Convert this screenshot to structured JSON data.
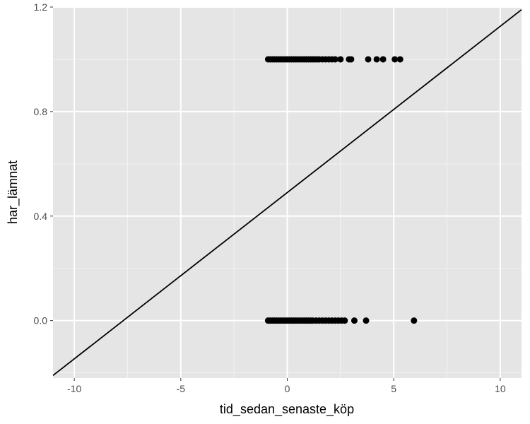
{
  "chart_data": {
    "type": "scatter",
    "xlabel": "tid_sedan_senaste_köp",
    "ylabel": "har_lämnat",
    "xlim": [
      -11,
      11
    ],
    "ylim": [
      -0.22,
      1.2
    ],
    "x_ticks": [
      -10,
      -5,
      0,
      5,
      10
    ],
    "x_tick_labels": [
      "-10",
      "-5",
      "0",
      "5",
      "10"
    ],
    "y_ticks": [
      0.0,
      0.4,
      0.8,
      1.2
    ],
    "y_tick_labels": [
      "0.0",
      "0.4",
      "0.8",
      "1.2"
    ],
    "grid": true,
    "background": "#e5e5e5",
    "grid_color": "#ffffff",
    "point_color": "#000000",
    "line_color": "#000000",
    "points": [
      {
        "x": -0.9,
        "y": 1
      },
      {
        "x": -0.8,
        "y": 1
      },
      {
        "x": -0.7,
        "y": 1
      },
      {
        "x": -0.6,
        "y": 1
      },
      {
        "x": -0.5,
        "y": 1
      },
      {
        "x": -0.4,
        "y": 1
      },
      {
        "x": -0.3,
        "y": 1
      },
      {
        "x": -0.2,
        "y": 1
      },
      {
        "x": -0.1,
        "y": 1
      },
      {
        "x": 0.0,
        "y": 1
      },
      {
        "x": 0.1,
        "y": 1
      },
      {
        "x": 0.2,
        "y": 1
      },
      {
        "x": 0.3,
        "y": 1
      },
      {
        "x": 0.4,
        "y": 1
      },
      {
        "x": 0.5,
        "y": 1
      },
      {
        "x": 0.6,
        "y": 1
      },
      {
        "x": 0.7,
        "y": 1
      },
      {
        "x": 0.8,
        "y": 1
      },
      {
        "x": 0.9,
        "y": 1
      },
      {
        "x": 1.0,
        "y": 1
      },
      {
        "x": 1.1,
        "y": 1
      },
      {
        "x": 1.2,
        "y": 1
      },
      {
        "x": 1.3,
        "y": 1
      },
      {
        "x": 1.4,
        "y": 1
      },
      {
        "x": 1.5,
        "y": 1
      },
      {
        "x": 1.65,
        "y": 1
      },
      {
        "x": 1.8,
        "y": 1
      },
      {
        "x": 1.95,
        "y": 1
      },
      {
        "x": 2.1,
        "y": 1
      },
      {
        "x": 2.25,
        "y": 1
      },
      {
        "x": 2.5,
        "y": 1
      },
      {
        "x": 2.9,
        "y": 1
      },
      {
        "x": 3.0,
        "y": 1
      },
      {
        "x": 3.8,
        "y": 1
      },
      {
        "x": 4.2,
        "y": 1
      },
      {
        "x": 4.5,
        "y": 1
      },
      {
        "x": 5.05,
        "y": 1
      },
      {
        "x": 5.3,
        "y": 1
      },
      {
        "x": -0.9,
        "y": 0
      },
      {
        "x": -0.8,
        "y": 0
      },
      {
        "x": -0.7,
        "y": 0
      },
      {
        "x": -0.6,
        "y": 0
      },
      {
        "x": -0.5,
        "y": 0
      },
      {
        "x": -0.4,
        "y": 0
      },
      {
        "x": -0.3,
        "y": 0
      },
      {
        "x": -0.2,
        "y": 0
      },
      {
        "x": -0.1,
        "y": 0
      },
      {
        "x": 0.0,
        "y": 0
      },
      {
        "x": 0.1,
        "y": 0
      },
      {
        "x": 0.2,
        "y": 0
      },
      {
        "x": 0.3,
        "y": 0
      },
      {
        "x": 0.4,
        "y": 0
      },
      {
        "x": 0.5,
        "y": 0
      },
      {
        "x": 0.6,
        "y": 0
      },
      {
        "x": 0.7,
        "y": 0
      },
      {
        "x": 0.8,
        "y": 0
      },
      {
        "x": 0.9,
        "y": 0
      },
      {
        "x": 1.0,
        "y": 0
      },
      {
        "x": 1.1,
        "y": 0
      },
      {
        "x": 1.2,
        "y": 0
      },
      {
        "x": 1.35,
        "y": 0
      },
      {
        "x": 1.5,
        "y": 0
      },
      {
        "x": 1.65,
        "y": 0
      },
      {
        "x": 1.8,
        "y": 0
      },
      {
        "x": 1.95,
        "y": 0
      },
      {
        "x": 2.1,
        "y": 0
      },
      {
        "x": 2.25,
        "y": 0
      },
      {
        "x": 2.4,
        "y": 0
      },
      {
        "x": 2.55,
        "y": 0
      },
      {
        "x": 2.7,
        "y": 0
      },
      {
        "x": 3.15,
        "y": 0
      },
      {
        "x": 3.7,
        "y": 0
      },
      {
        "x": 5.95,
        "y": 0
      }
    ],
    "fit_line": {
      "x": [
        -11,
        11
      ],
      "y": [
        -0.21,
        1.19
      ]
    }
  }
}
